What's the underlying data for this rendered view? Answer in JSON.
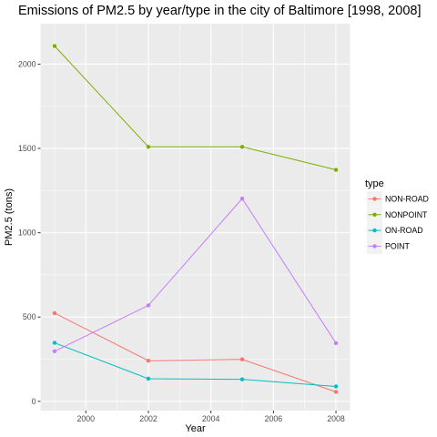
{
  "chart_data": {
    "type": "line",
    "title": "Emissions of PM2.5 by year/type in the city of Baltimore [1998, 2008]",
    "xlabel": "Year",
    "ylabel": "PM2.5 (tons)",
    "xlim": [
      1998.55,
      2008.45
    ],
    "ylim": [
      -55,
      2240
    ],
    "x_ticks": [
      2000,
      2002,
      2004,
      2006,
      2008
    ],
    "y_ticks": [
      0,
      500,
      1000,
      1500,
      2000
    ],
    "grid": true,
    "legend": {
      "title": "type",
      "position": "right"
    },
    "x": [
      1999,
      2002,
      2005,
      2008
    ],
    "series": [
      {
        "name": "NON-ROAD",
        "color": "#F8766D",
        "values": [
          522.94,
          240.85,
          248.93,
          55.82
        ]
      },
      {
        "name": "NONPOINT",
        "color": "#7CAE00",
        "values": [
          2107.63,
          1509.5,
          1509.5,
          1373.21
        ]
      },
      {
        "name": "ON-ROAD",
        "color": "#00BFC4",
        "values": [
          346.82,
          134.31,
          130.43,
          88.28
        ]
      },
      {
        "name": "POINT",
        "color": "#C77CFF",
        "values": [
          296.8,
          569.26,
          1202.49,
          344.98
        ]
      }
    ]
  }
}
